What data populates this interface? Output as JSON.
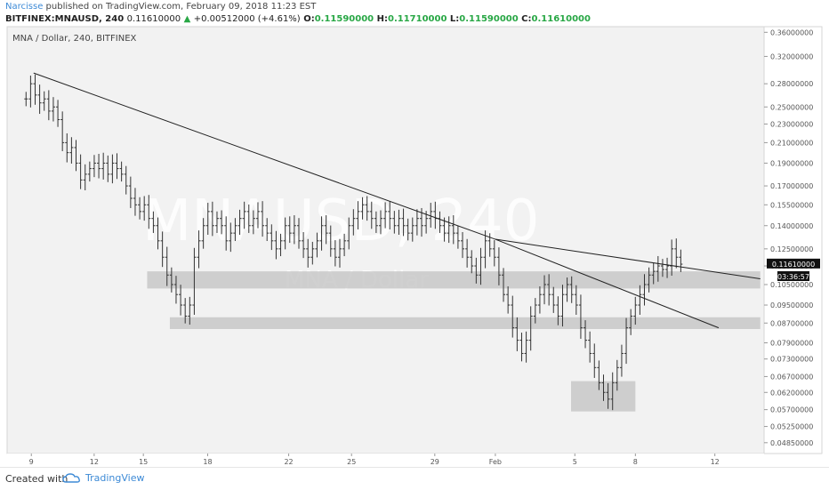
{
  "header": {
    "author": "Narcisse",
    "published_text": "published on TradingView.com, February 09, 2018 11:23 EST",
    "symbol": "BITFINEX:MNAUSD, 240",
    "last": "0.11610000",
    "change": "+0.00512000 (+4.61%)",
    "o_label": "O:",
    "o": "0.11590000",
    "h_label": "H:",
    "h": "0.11710000",
    "l_label": "L:",
    "l": "0.11590000",
    "c_label": "C:",
    "c": "0.11610000"
  },
  "chart_data": {
    "type": "ohlc",
    "title": "MNA / Dollar, 240, BITFINEX",
    "watermark_big": "MNAUSD, 240",
    "watermark_small": "MNA / Dollar",
    "price_label": "0.11610000",
    "countdown": "03:36:57",
    "y_ticks": [
      "0.36000000",
      "0.32000000",
      "0.28000000",
      "0.25000000",
      "0.23000000",
      "0.21000000",
      "0.19000000",
      "0.17000000",
      "0.15500000",
      "0.14000000",
      "0.12500000",
      "0.11500000",
      "0.10500000",
      "0.09500000",
      "0.08700000",
      "0.07900000",
      "0.07300000",
      "0.06700000",
      "0.06200000",
      "0.05700000",
      "0.05250000",
      "0.04850000"
    ],
    "x_ticks": [
      "9",
      "12",
      "15",
      "18",
      "22",
      "25",
      "29",
      "Feb",
      "5",
      "8",
      "12"
    ],
    "scale": "log",
    "ylim": [
      0.046,
      0.37
    ],
    "colors": {
      "bars": "#333333",
      "lines": "#222222",
      "zones": "#c8c8c8",
      "bg": "#f2f2f2"
    },
    "series_close": [
      0.26,
      0.28,
      0.265,
      0.255,
      0.26,
      0.245,
      0.25,
      0.235,
      0.21,
      0.2,
      0.205,
      0.19,
      0.175,
      0.18,
      0.185,
      0.19,
      0.185,
      0.19,
      0.18,
      0.19,
      0.185,
      0.18,
      0.17,
      0.16,
      0.155,
      0.15,
      0.155,
      0.145,
      0.14,
      0.13,
      0.12,
      0.11,
      0.105,
      0.1,
      0.095,
      0.09,
      0.095,
      0.12,
      0.13,
      0.14,
      0.15,
      0.14,
      0.145,
      0.14,
      0.13,
      0.135,
      0.14,
      0.145,
      0.15,
      0.14,
      0.145,
      0.15,
      0.14,
      0.135,
      0.13,
      0.125,
      0.13,
      0.14,
      0.135,
      0.14,
      0.13,
      0.125,
      0.12,
      0.125,
      0.13,
      0.14,
      0.135,
      0.125,
      0.12,
      0.125,
      0.13,
      0.14,
      0.145,
      0.15,
      0.155,
      0.15,
      0.145,
      0.14,
      0.145,
      0.15,
      0.145,
      0.14,
      0.145,
      0.14,
      0.135,
      0.14,
      0.145,
      0.14,
      0.145,
      0.15,
      0.145,
      0.14,
      0.135,
      0.14,
      0.135,
      0.13,
      0.125,
      0.12,
      0.115,
      0.11,
      0.12,
      0.13,
      0.125,
      0.12,
      0.11,
      0.1,
      0.095,
      0.085,
      0.08,
      0.075,
      0.08,
      0.09,
      0.095,
      0.1,
      0.105,
      0.1,
      0.095,
      0.09,
      0.1,
      0.105,
      0.1,
      0.095,
      0.085,
      0.08,
      0.075,
      0.07,
      0.065,
      0.062,
      0.06,
      0.065,
      0.07,
      0.075,
      0.085,
      0.09,
      0.095,
      0.1,
      0.105,
      0.11,
      0.112,
      0.115,
      0.113,
      0.115,
      0.125,
      0.12,
      0.116
    ],
    "trendlines": [
      {
        "from": {
          "x": 0.035,
          "price": 0.295
        },
        "to": {
          "x": 0.645,
          "price": 0.131
        }
      },
      {
        "from": {
          "x": 0.645,
          "price": 0.131
        },
        "to": {
          "x": 0.94,
          "price": 0.085
        }
      },
      {
        "from": {
          "x": 0.645,
          "price": 0.131
        },
        "to": {
          "x": 0.995,
          "price": 0.108
        }
      }
    ],
    "zones": [
      {
        "x0": 0.185,
        "x1": 0.995,
        "p0": 0.112,
        "p1": 0.103
      },
      {
        "x0": 0.215,
        "x1": 0.995,
        "p0": 0.0895,
        "p1": 0.0845
      },
      {
        "x0": 0.745,
        "x1": 0.83,
        "p0": 0.0655,
        "p1": 0.0565
      }
    ]
  },
  "footer": {
    "created": "Created with",
    "brand": "TradingView"
  }
}
